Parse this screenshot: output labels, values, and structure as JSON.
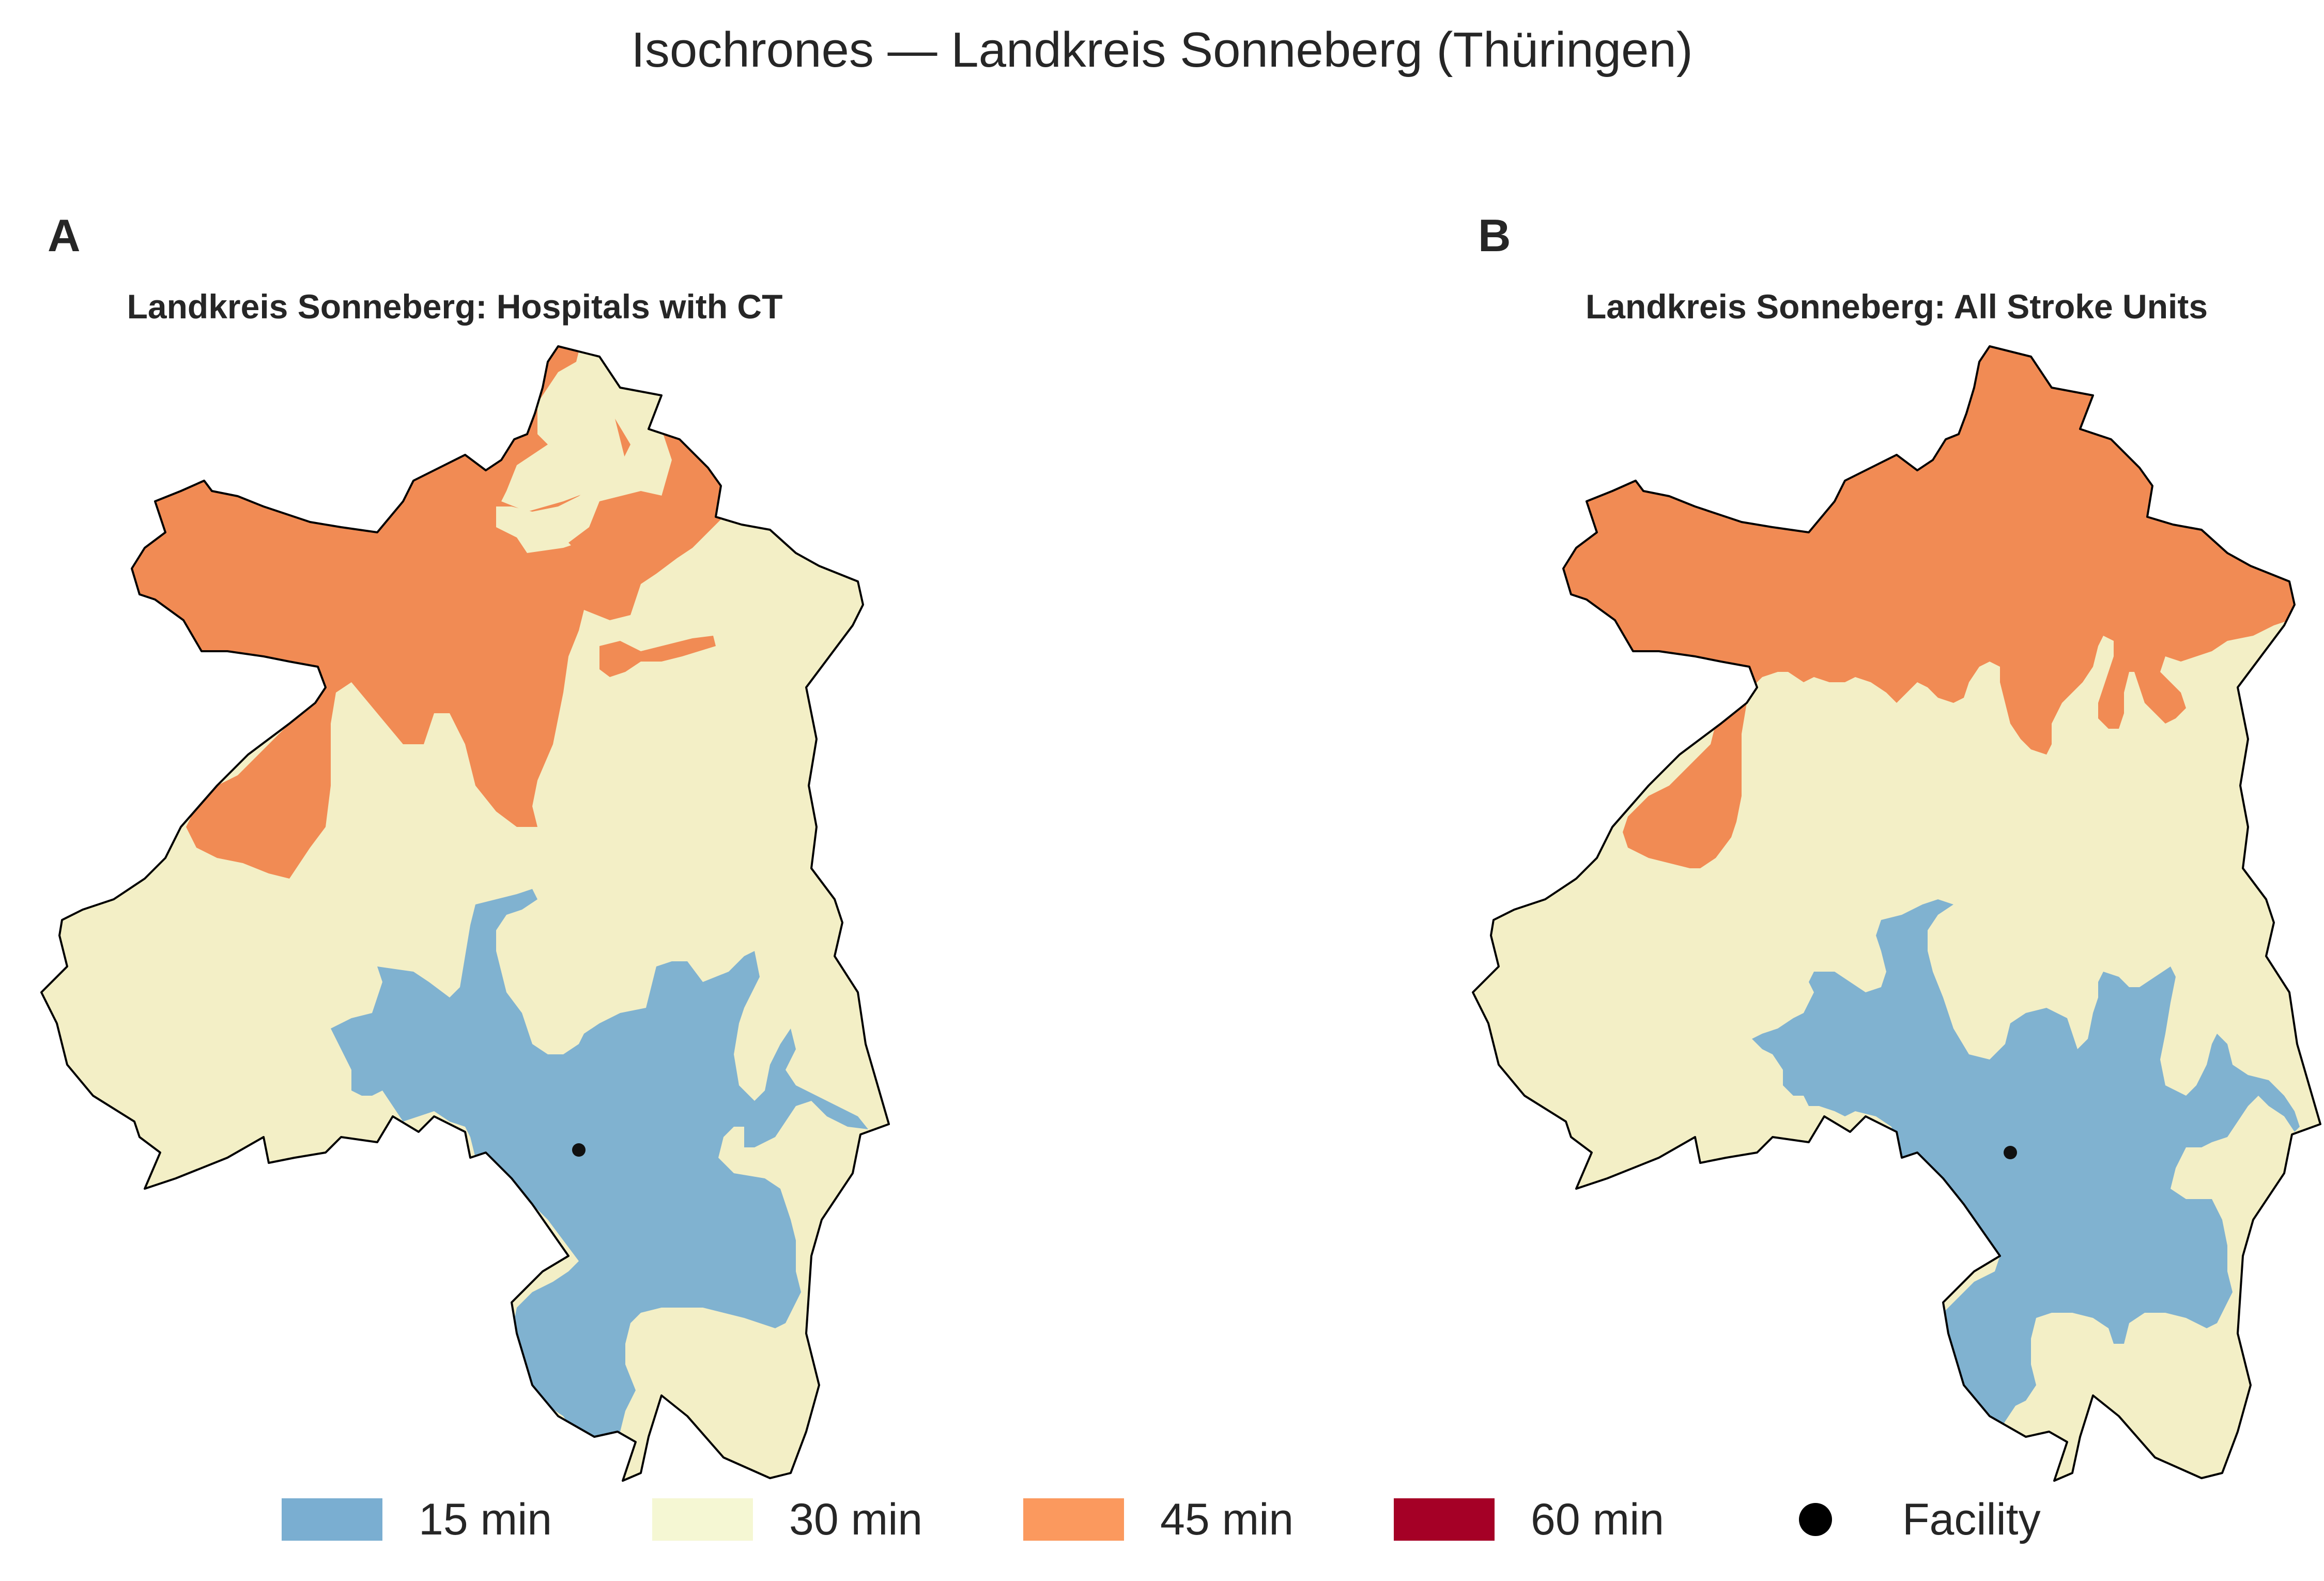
{
  "title": "Isochrones — Landkreis Sonneberg (Thüringen)",
  "colors": {
    "15 min": "#80b2d0",
    "30 min": "#f3efc6",
    "45 min": "#f18b54",
    "60 min": "#a50026",
    "border": "#000000",
    "facility": "#111111"
  },
  "panels": [
    {
      "letter": "A",
      "title": "Landkreis Sonneberg: Hospitals with CT"
    },
    {
      "letter": "B",
      "title": "Landkreis Sonneberg: All Stroke Units"
    }
  ],
  "legend": [
    {
      "label": "15 min",
      "color": "#7aaed1",
      "kind": "swatch"
    },
    {
      "label": "30 min",
      "color": "#f5f7d3",
      "kind": "swatch"
    },
    {
      "label": "45 min",
      "color": "#fb995e",
      "kind": "swatch"
    },
    {
      "label": "60 min",
      "color": "#a50026",
      "kind": "swatch"
    },
    {
      "label": "Facility",
      "color": "#000000",
      "kind": "marker"
    }
  ]
}
